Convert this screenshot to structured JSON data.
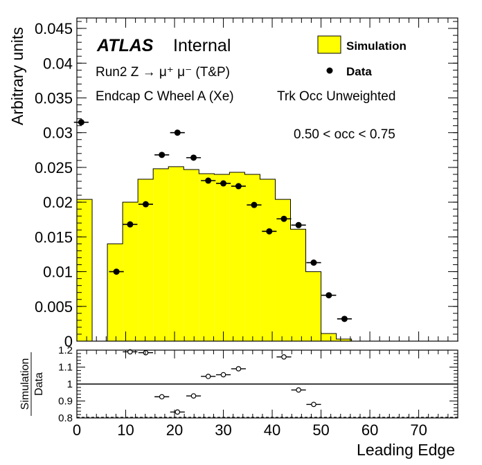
{
  "chart_data": [
    {
      "type": "bar",
      "panel": "main",
      "atlas_label": "ATLAS",
      "atlas_status": "Internal",
      "annotations": [
        "Run2 Z → μ⁺ μ⁻ (T&P)",
        "Endcap C Wheel A (Xe)",
        "Trk Occ Unweighted",
        "0.50 < occ < 0.75"
      ],
      "ylabel": "Arbitrary units",
      "xlim": [
        0,
        78
      ],
      "ylim": [
        0,
        0.0465
      ],
      "y_ticks": [
        "0",
        "0.005",
        "0.01",
        "0.015",
        "0.02",
        "0.025",
        "0.03",
        "0.035",
        "0.04",
        "0.045"
      ],
      "legend": {
        "position": "top-right",
        "entries": [
          {
            "label": "Simulation",
            "style": "filled",
            "color": "#ffff00"
          },
          {
            "label": "Data",
            "style": "marker",
            "color": "#000000"
          }
        ]
      },
      "series": [
        {
          "name": "Simulation",
          "kind": "histogram",
          "color": "#ffff00",
          "bin_width": 3.125,
          "bin_low_edges": [
            0,
            3.125,
            6.25,
            9.375,
            12.5,
            15.625,
            18.75,
            21.875,
            25,
            28.125,
            31.25,
            34.375,
            37.5,
            40.625,
            43.75,
            46.875,
            50,
            53.125,
            56.25,
            59.375,
            62.5,
            65.625,
            68.75,
            71.875,
            75
          ],
          "values": [
            0.0204,
            0,
            0.014,
            0.02,
            0.0233,
            0.0248,
            0.0251,
            0.0247,
            0.0241,
            0.024,
            0.0243,
            0.024,
            0.0233,
            0.0204,
            0.0161,
            0.01,
            0.0011,
            0.0003,
            0,
            0,
            0,
            0,
            0,
            0,
            0
          ]
        },
        {
          "name": "Data",
          "kind": "points",
          "color": "#000000",
          "x": [
            0.9,
            8.1,
            10.9,
            14.1,
            17.4,
            20.6,
            23.9,
            26.9,
            30.0,
            33.1,
            36.3,
            39.4,
            42.4,
            45.4,
            48.5,
            51.6,
            54.8
          ],
          "y": [
            0.0315,
            0.01,
            0.0168,
            0.0197,
            0.0268,
            0.03,
            0.0264,
            0.0231,
            0.0227,
            0.0223,
            0.0196,
            0.0158,
            0.0176,
            0.0167,
            0.0113,
            0.0066,
            0.0032
          ],
          "x_error_half_width": 1.5
        }
      ]
    },
    {
      "type": "scatter",
      "panel": "ratio",
      "ylabel_numerator": "Simulation",
      "ylabel_denominator": "Data",
      "xlabel": "Leading Edge",
      "xlim": [
        0,
        78
      ],
      "ylim": [
        0.8,
        1.2
      ],
      "x_ticks": [
        "0",
        "10",
        "20",
        "30",
        "40",
        "50",
        "60",
        "70"
      ],
      "y_ticks": [
        "0.8",
        "0.9",
        "1",
        "1.1",
        "1.2"
      ],
      "reference_line": 1.0,
      "lower_dashed_line": 0.8,
      "series": [
        {
          "name": "Simulation/Data",
          "x": [
            10.9,
            14.1,
            17.4,
            20.6,
            23.9,
            26.9,
            30.0,
            33.1,
            42.4,
            45.4,
            48.5
          ],
          "y": [
            1.19,
            1.185,
            0.925,
            0.835,
            0.93,
            1.045,
            1.055,
            1.09,
            1.16,
            0.965,
            0.88
          ],
          "x_error_half_width": 1.5
        }
      ]
    }
  ]
}
